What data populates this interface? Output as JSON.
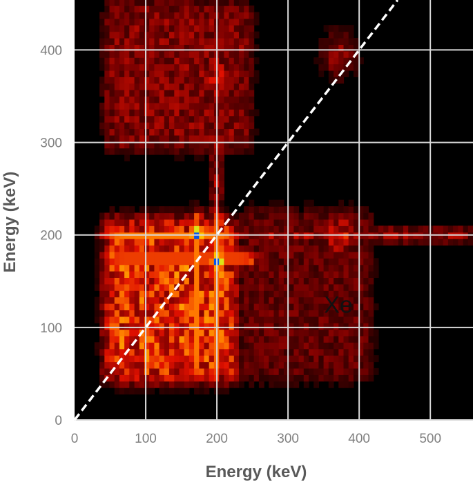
{
  "chart_data": {
    "type": "heatmap",
    "xlabel": "Energy (keV)",
    "ylabel": "Energy (keV)",
    "xlim": [
      0,
      560
    ],
    "ylim": [
      0,
      454
    ],
    "xticks": [
      "0",
      "100",
      "200",
      "300",
      "400",
      "500"
    ],
    "yticks": [
      "0",
      "100",
      "200",
      "300",
      "400"
    ],
    "grid": true,
    "grid_color": "#d9d9d9",
    "background": "#000000",
    "colormap": [
      "#000000",
      "#7a0000",
      "#e01000",
      "#ff7a00",
      "#ffe000",
      "#20ff90",
      "#0030ff"
    ],
    "diagonal_line": {
      "from": [
        0,
        0
      ],
      "to": [
        454,
        454
      ],
      "style": "dashed",
      "color": "#ffffff"
    },
    "annotations": [
      {
        "text": "Xe",
        "x": 370,
        "y": 125
      }
    ],
    "features": [
      {
        "kind": "peak",
        "x": 172,
        "y": 201,
        "intensity": 1.0
      },
      {
        "kind": "peak",
        "x": 201,
        "y": 172,
        "intensity": 1.0
      },
      {
        "kind": "band-horizontal",
        "y": 200,
        "x_range": [
          40,
          230
        ],
        "intensity": 0.75
      },
      {
        "kind": "band-horizontal",
        "y": 200,
        "x_range": [
          230,
          560
        ],
        "intensity": 0.35
      },
      {
        "kind": "band-horizontal",
        "y": 175,
        "x_range": [
          40,
          260
        ],
        "intensity": 0.72
      },
      {
        "kind": "band-vertical",
        "x": 172,
        "y_range": [
          40,
          225
        ],
        "intensity": 0.75
      },
      {
        "kind": "band-vertical",
        "x": 200,
        "y_range": [
          40,
          230
        ],
        "intensity": 0.72
      },
      {
        "kind": "band-vertical",
        "x": 200,
        "y_range": [
          230,
          454
        ],
        "intensity": 0.35
      },
      {
        "kind": "region",
        "x_range": [
          40,
          230
        ],
        "y_range": [
          40,
          220
        ],
        "intensity": 0.55
      },
      {
        "kind": "region",
        "x_range": [
          40,
          250
        ],
        "y_range": [
          290,
          454
        ],
        "intensity": 0.3
      },
      {
        "kind": "region",
        "x_range": [
          230,
          420
        ],
        "y_range": [
          40,
          230
        ],
        "intensity": 0.22
      },
      {
        "kind": "spot",
        "x": 200,
        "y": 370,
        "intensity": 0.5
      },
      {
        "kind": "spot",
        "x": 372,
        "y": 200,
        "intensity": 0.5
      },
      {
        "kind": "spot",
        "x": 372,
        "y": 395,
        "intensity": 0.35
      }
    ]
  }
}
